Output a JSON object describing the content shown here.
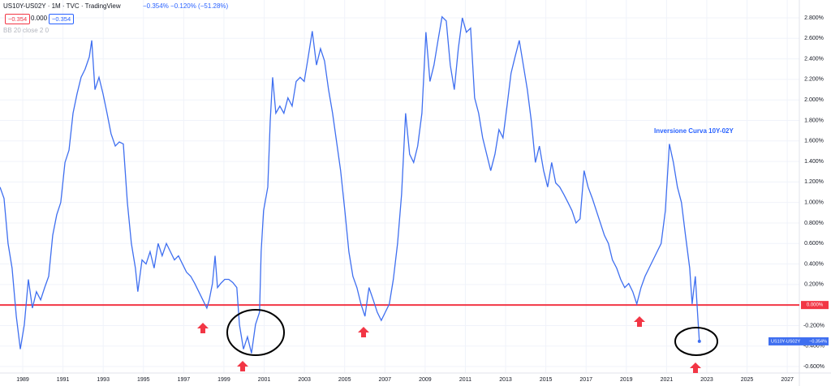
{
  "header": {
    "symbol": "US10Y-US02Y · 1M · TVC · TradingView",
    "badges": [
      "−0.354",
      "0.000",
      "−0.354"
    ],
    "change": "−0.354%  −0.120%  (−51.28%)",
    "indicator": "BB 20 close 2 0"
  },
  "chart_data": {
    "type": "line",
    "annotation": "Inversione Curva 10Y-02Y",
    "xlim": [
      1987.87,
      2027.6
    ],
    "xticks": [
      1989,
      1991,
      1993,
      1995,
      1997,
      1999,
      2001,
      2003,
      2005,
      2007,
      2009,
      2011,
      2013,
      2015,
      2017,
      2019,
      2021,
      2023,
      2025,
      2027
    ],
    "ylim": [
      -0.663,
      2.974
    ],
    "yticks": [
      {
        "value": 2.8,
        "label": "2.800%"
      },
      {
        "value": 2.6,
        "label": "2.600%"
      },
      {
        "value": 2.4,
        "label": "2.400%"
      },
      {
        "value": 2.2,
        "label": "2.200%"
      },
      {
        "value": 2.0,
        "label": "2.000%"
      },
      {
        "value": 1.8,
        "label": "1.800%"
      },
      {
        "value": 1.6,
        "label": "1.600%"
      },
      {
        "value": 1.4,
        "label": "1.400%"
      },
      {
        "value": 1.2,
        "label": "1.200%"
      },
      {
        "value": 1.0,
        "label": "1.000%"
      },
      {
        "value": 0.8,
        "label": "0.800%"
      },
      {
        "value": 0.6,
        "label": "0.600%"
      },
      {
        "value": 0.4,
        "label": "0.400%"
      },
      {
        "value": 0.2,
        "label": "0.200%"
      },
      {
        "value": -0.2,
        "label": "-0.200%"
      },
      {
        "value": -0.4,
        "label": "-0.400%"
      },
      {
        "value": -0.6,
        "label": "-0.600%"
      }
    ],
    "grid": true,
    "hline": {
      "value": 0,
      "label": "0.000%",
      "color": "#f23645"
    },
    "x": [
      1987.87,
      1988.07,
      1988.27,
      1988.47,
      1988.68,
      1988.88,
      1989.08,
      1989.28,
      1989.48,
      1989.68,
      1989.89,
      1990.09,
      1990.29,
      1990.49,
      1990.69,
      1990.89,
      1991.1,
      1991.3,
      1991.5,
      1991.7,
      1991.9,
      1992.1,
      1992.31,
      1992.43,
      1992.59,
      1992.79,
      1992.99,
      1993.19,
      1993.39,
      1993.6,
      1993.8,
      1994.0,
      1994.2,
      1994.4,
      1994.6,
      1994.72,
      1994.93,
      1995.13,
      1995.33,
      1995.53,
      1995.73,
      1995.93,
      1996.14,
      1996.34,
      1996.54,
      1996.74,
      1996.94,
      1997.14,
      1997.35,
      1997.55,
      1997.75,
      1997.95,
      1998.15,
      1998.27,
      1998.43,
      1998.56,
      1998.68,
      1998.84,
      1999.04,
      1999.24,
      1999.44,
      1999.64,
      1999.77,
      1999.97,
      2000.17,
      2000.37,
      2000.57,
      2000.77,
      2000.85,
      2000.97,
      2001.18,
      2001.3,
      2001.42,
      2001.58,
      2001.78,
      2001.98,
      2002.18,
      2002.39,
      2002.59,
      2002.79,
      2002.99,
      2003.19,
      2003.39,
      2003.6,
      2003.8,
      2004.0,
      2004.2,
      2004.4,
      2004.6,
      2004.8,
      2005.01,
      2005.21,
      2005.41,
      2005.61,
      2005.81,
      2006.01,
      2006.21,
      2006.42,
      2006.62,
      2006.82,
      2007.02,
      2007.22,
      2007.42,
      2007.63,
      2007.83,
      2008.03,
      2008.23,
      2008.43,
      2008.63,
      2008.84,
      2009.04,
      2009.24,
      2009.44,
      2009.64,
      2009.84,
      2010.05,
      2010.25,
      2010.45,
      2010.65,
      2010.85,
      2011.05,
      2011.26,
      2011.46,
      2011.66,
      2011.86,
      2012.06,
      2012.26,
      2012.47,
      2012.67,
      2012.87,
      2013.07,
      2013.27,
      2013.47,
      2013.68,
      2013.88,
      2014.08,
      2014.28,
      2014.48,
      2014.68,
      2014.89,
      2015.09,
      2015.29,
      2015.49,
      2015.69,
      2015.89,
      2016.1,
      2016.3,
      2016.5,
      2016.7,
      2016.9,
      2017.1,
      2017.31,
      2017.51,
      2017.71,
      2017.91,
      2018.11,
      2018.31,
      2018.52,
      2018.72,
      2018.92,
      2019.12,
      2019.32,
      2019.52,
      2019.73,
      2019.93,
      2020.13,
      2020.33,
      2020.53,
      2020.73,
      2020.94,
      2021.14,
      2021.34,
      2021.54,
      2021.74,
      2021.94,
      2022.15,
      2022.27,
      2022.43,
      2022.55,
      2022.63
    ],
    "series": [
      {
        "name": "US10Y-US02Y",
        "color": "#3f6ff0",
        "last_value_label": "−0.354%",
        "values": [
          1.15,
          1.04,
          0.6,
          0.36,
          -0.11,
          -0.43,
          -0.19,
          0.25,
          -0.03,
          0.13,
          0.05,
          0.17,
          0.28,
          0.68,
          0.88,
          1.0,
          1.39,
          1.51,
          1.87,
          2.06,
          2.22,
          2.3,
          2.42,
          2.58,
          2.1,
          2.22,
          2.06,
          1.87,
          1.67,
          1.55,
          1.59,
          1.57,
          1.0,
          0.6,
          0.36,
          0.13,
          0.44,
          0.4,
          0.52,
          0.36,
          0.6,
          0.48,
          0.6,
          0.52,
          0.44,
          0.48,
          0.4,
          0.32,
          0.28,
          0.21,
          0.13,
          0.05,
          -0.03,
          0.05,
          0.21,
          0.48,
          0.17,
          0.21,
          0.25,
          0.25,
          0.22,
          0.17,
          -0.19,
          -0.43,
          -0.31,
          -0.47,
          -0.19,
          -0.07,
          0.52,
          0.92,
          1.15,
          1.79,
          2.22,
          1.87,
          1.94,
          1.87,
          2.02,
          1.94,
          2.18,
          2.22,
          2.18,
          2.42,
          2.67,
          2.34,
          2.5,
          2.38,
          2.1,
          1.87,
          1.59,
          1.31,
          0.92,
          0.52,
          0.28,
          0.17,
          0.01,
          -0.11,
          0.17,
          0.05,
          -0.07,
          -0.15,
          -0.07,
          0.01,
          0.25,
          0.6,
          1.08,
          1.87,
          1.47,
          1.39,
          1.55,
          1.87,
          2.66,
          2.18,
          2.34,
          2.58,
          2.81,
          2.77,
          2.34,
          2.1,
          2.5,
          2.8,
          2.66,
          2.7,
          2.02,
          1.87,
          1.63,
          1.47,
          1.31,
          1.47,
          1.71,
          1.63,
          1.94,
          2.26,
          2.42,
          2.58,
          2.34,
          2.1,
          1.79,
          1.39,
          1.55,
          1.31,
          1.15,
          1.39,
          1.19,
          1.15,
          1.08,
          1.0,
          0.92,
          0.8,
          0.84,
          1.31,
          1.15,
          1.04,
          0.92,
          0.8,
          0.68,
          0.6,
          0.44,
          0.36,
          0.25,
          0.17,
          0.21,
          0.13,
          0.01,
          0.17,
          0.28,
          0.36,
          0.44,
          0.52,
          0.6,
          0.92,
          1.57,
          1.39,
          1.15,
          1.0,
          0.68,
          0.36,
          0.01,
          0.28,
          -0.11,
          -0.354
        ]
      }
    ]
  }
}
